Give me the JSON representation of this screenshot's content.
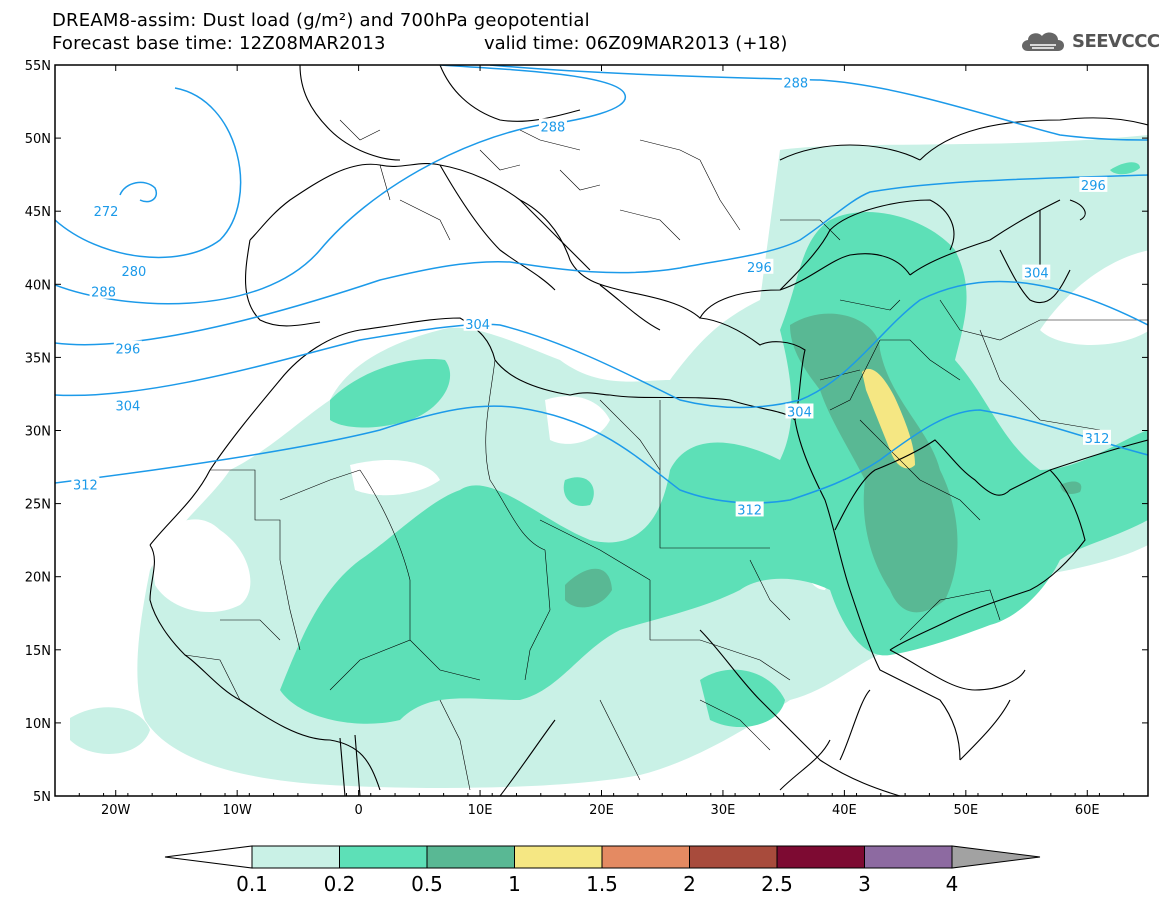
{
  "title_line1": "DREAM8-assim: Dust load (g/m²) and 700hPa geopotential",
  "title_line2": "Forecast base time: 12Z08MAR2013",
  "valid_time": "valid time: 06Z09MAR2013 (+18)",
  "logo_text": "SEEVCCC",
  "icons": [
    "cloud-logo-icon"
  ],
  "map": {
    "lon_range": [
      -25,
      65
    ],
    "lat_range": [
      5,
      55
    ],
    "lat_ticks": [
      "55N",
      "50N",
      "45N",
      "40N",
      "35N",
      "30N",
      "25N",
      "20N",
      "15N",
      "10N",
      "5N"
    ],
    "lon_ticks": [
      "20W",
      "10W",
      "0",
      "10E",
      "20E",
      "30E",
      "40E",
      "50E",
      "60E"
    ],
    "contour_labels": [
      {
        "text": "288",
        "lon": 36,
        "lat": 53.8
      },
      {
        "text": "288",
        "lon": 16,
        "lat": 50.8
      },
      {
        "text": "272",
        "lon": -20.8,
        "lat": 45
      },
      {
        "text": "280",
        "lon": -18.5,
        "lat": 40.9
      },
      {
        "text": "288",
        "lon": -21,
        "lat": 39.5
      },
      {
        "text": "296",
        "lon": -19,
        "lat": 35.6
      },
      {
        "text": "304",
        "lon": -19,
        "lat": 31.7
      },
      {
        "text": "312",
        "lon": -22.5,
        "lat": 26.3
      },
      {
        "text": "304",
        "lon": 9.8,
        "lat": 37.3
      },
      {
        "text": "296",
        "lon": 33,
        "lat": 41.2
      },
      {
        "text": "296",
        "lon": 60.5,
        "lat": 46.8
      },
      {
        "text": "304",
        "lon": 55.8,
        "lat": 40.8
      },
      {
        "text": "304",
        "lon": 36.3,
        "lat": 31.3
      },
      {
        "text": "312",
        "lon": 32.2,
        "lat": 24.6
      },
      {
        "text": "312",
        "lon": 60.8,
        "lat": 29.5
      }
    ]
  },
  "colorbar": {
    "colors": [
      "#ffffff",
      "#c9f1e6",
      "#5de0b7",
      "#59b894",
      "#f5e783",
      "#e48a62",
      "#a84b3c",
      "#7d0a32",
      "#8d6aa1",
      "#a2a2a2"
    ],
    "labels": [
      "0.1",
      "0.2",
      "0.5",
      "1",
      "1.5",
      "2",
      "2.5",
      "3",
      "4"
    ]
  }
}
